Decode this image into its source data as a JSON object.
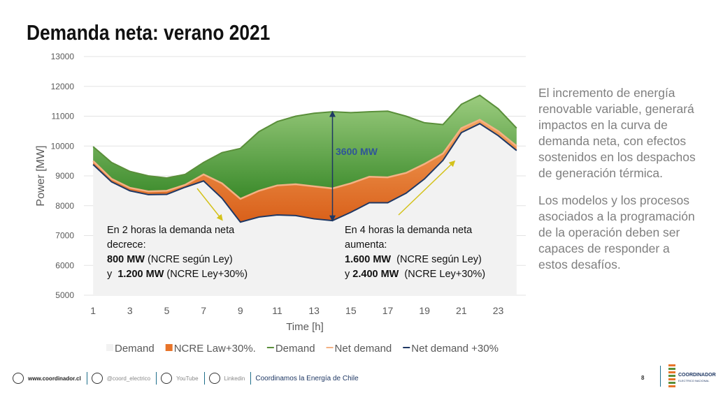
{
  "title": "Demanda neta: verano 2021",
  "chart_data": {
    "type": "area",
    "x": [
      1,
      2,
      3,
      4,
      5,
      6,
      7,
      8,
      9,
      10,
      11,
      12,
      13,
      14,
      15,
      16,
      17,
      18,
      19,
      20,
      21,
      22,
      23,
      24
    ],
    "xlim": [
      0.5,
      24.5
    ],
    "xticks": [
      1,
      3,
      5,
      7,
      9,
      11,
      13,
      15,
      17,
      19,
      21,
      23
    ],
    "ylim": [
      5000,
      13000
    ],
    "yticks": [
      5000,
      6000,
      7000,
      8000,
      9000,
      10000,
      11000,
      12000,
      13000
    ],
    "xlabel": "Time [h]",
    "ylabel": "Power [MW]",
    "grid": true,
    "series": [
      {
        "name": "Demand",
        "kind": "area",
        "color": "#f2f2f2",
        "values": [
          9380,
          8800,
          8500,
          8370,
          8380,
          8620,
          8830,
          8250,
          7450,
          7620,
          7690,
          7670,
          7560,
          7500,
          7780,
          8100,
          8100,
          8420,
          8900,
          9520,
          10450,
          10750,
          10350,
          9850
        ]
      },
      {
        "name": "NCRE Law+30%.",
        "kind": "area",
        "color": "#e8742a",
        "values": [
          120,
          100,
          100,
          110,
          120,
          80,
          220,
          500,
          780,
          880,
          990,
          1050,
          1090,
          1080,
          970,
          870,
          850,
          680,
          500,
          230,
          150,
          130,
          150,
          150
        ]
      },
      {
        "name": "Demand",
        "kind": "line",
        "color": "#5a8f3a",
        "values": [
          9980,
          9450,
          9150,
          9000,
          8930,
          9050,
          9450,
          9780,
          9920,
          10480,
          10820,
          11000,
          11100,
          11150,
          11120,
          11150,
          11170,
          11000,
          10780,
          10720,
          11400,
          11700,
          11250,
          10600
        ]
      },
      {
        "name": "Net demand",
        "kind": "line",
        "color": "#f4b183",
        "values": [
          9500,
          8900,
          8600,
          8480,
          8500,
          8700,
          9050,
          8750,
          8230,
          8500,
          8680,
          8720,
          8650,
          8580,
          8750,
          8970,
          8950,
          9100,
          9400,
          9750,
          10600,
          10880,
          10500,
          10000
        ]
      },
      {
        "name": "Net demand +30%",
        "kind": "line",
        "color": "#1f3864",
        "values": [
          9380,
          8800,
          8500,
          8370,
          8380,
          8620,
          8830,
          8250,
          7450,
          7620,
          7690,
          7670,
          7560,
          7500,
          7780,
          8100,
          8100,
          8420,
          8900,
          9520,
          10450,
          10750,
          10350,
          9850
        ]
      }
    ],
    "annotations": [
      {
        "text": "3600 MW"
      },
      {
        "lines": [
          [
            {
              "text": "En 2 horas la demanda neta",
              "bold": false
            }
          ],
          [
            {
              "text": "decrece:",
              "bold": false
            }
          ],
          [
            {
              "text": "800 MW",
              "bold": true
            },
            {
              "text": " (NCRE según Ley)",
              "bold": false
            }
          ],
          [
            {
              "text": "y  ",
              "bold": false
            },
            {
              "text": "1.200 MW",
              "bold": true
            },
            {
              "text": " (NCRE Ley+30%)",
              "bold": false
            }
          ]
        ]
      },
      {
        "lines": [
          [
            {
              "text": "En 4 horas la demanda neta",
              "bold": false
            }
          ],
          [
            {
              "text": "aumenta:",
              "bold": false
            }
          ],
          [
            {
              "text": "1.600 MW",
              "bold": true
            },
            {
              "text": "  (NCRE según Ley)",
              "bold": false
            }
          ],
          [
            {
              "text": "y ",
              "bold": false
            },
            {
              "text": "2.400 MW",
              "bold": true
            },
            {
              "text": "  (NCRE Ley+30%)",
              "bold": false
            }
          ]
        ]
      }
    ]
  },
  "side_text": [
    "El incremento de energía renovable variable, generará impactos en la curva de demanda neta, con efectos sostenidos en los despachos de generación térmica.",
    "Los modelos y los procesos asociados a la programación de la operación deben ser capaces de responder a estos desafíos."
  ],
  "footer": {
    "website": "www.coordinador.cl",
    "twitter": "@coord_electrico",
    "youtube": "YouTube",
    "linkedin": "Linkedin",
    "slogan": "Coordinamos la Energía de Chile",
    "page": "8",
    "brand": "COORDINADOR",
    "brand_sub": "ELECTRICO NACIONAL"
  }
}
